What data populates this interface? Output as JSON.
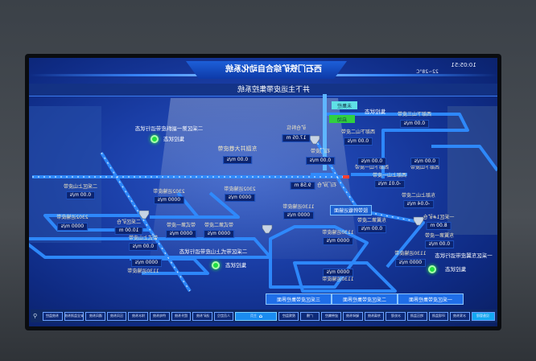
{
  "header": {
    "title": "西石门铁矿综合自动化系统",
    "subtitle": "井下主运皮带集控系统",
    "time": "10:05:51",
    "weather": "22~28°C"
  },
  "control": {
    "label": "集控状态",
    "mode_button": "未集控",
    "start_button": "启动"
  },
  "status_panels": [
    {
      "title": "二采区第一副斜皮带运行状态",
      "state": "集控状态",
      "color": "#20e040"
    },
    {
      "title": "二采区带式上山皮带运行状态",
      "state": "集控状态",
      "color": "#20e040"
    },
    {
      "title": "一采区东翼皮带运行状态",
      "state": "集控状态",
      "color": "#20e040"
    }
  ],
  "transfer_label": "胶带转载运输面",
  "stations": [
    {
      "name": "二采区上山皮带",
      "value": "0.00 m/s"
    },
    {
      "name": "2302运输皮带",
      "value": "0000 m/s"
    },
    {
      "name": "二采区矿仓",
      "value": "10.00 m"
    },
    {
      "name": "带式上山皮带",
      "value": "0.00 m/s"
    },
    {
      "name": "1130运输皮带",
      "value": "0000 m/s"
    },
    {
      "name": "2302运输皮带",
      "value": "0000 m/s"
    },
    {
      "name": "2302运输皮带",
      "value": "0000 m/s"
    },
    {
      "name": "带式第一皮带",
      "value": "0000 m/s"
    },
    {
      "name": "带式第二皮带",
      "value": "0000 m/s"
    },
    {
      "name": "东副井大巷皮带",
      "value": "0.00 m/s"
    },
    {
      "name": "矿仓料位",
      "value": "17.05 m"
    },
    {
      "name": "石门皮带",
      "value": "0.00 m/s"
    },
    {
      "name": "西部下山二皮带",
      "value": "0.00 m/s"
    },
    {
      "name": "西部下山三皮带",
      "value": "0.00 m/s"
    },
    {
      "name": "西部下山一皮带",
      "value": "0.00 m/s"
    },
    {
      "name": "西部下山皮带",
      "value": "0.00 m/s"
    },
    {
      "name": "石门矿仓",
      "value": "9.58 m"
    },
    {
      "name": "西部上山一皮带",
      "value": "-0.01 m/s"
    },
    {
      "name": "东部上山二皮带",
      "value": "-0.04 m/s"
    },
    {
      "name": "一采区1#矿仓",
      "value": "8.00 m"
    },
    {
      "name": "东翼第一皮带",
      "value": "0.00 m/s"
    },
    {
      "name": "东翼第二皮带",
      "value": "0.00 m/s"
    },
    {
      "name": "1130运输皮带",
      "value": "0000 m/s"
    },
    {
      "name": "1130运输皮带",
      "value": "0000 m/s"
    },
    {
      "name": "1130运输皮带",
      "value": "0000 m/s"
    },
    {
      "name": "1130运输皮带",
      "value": "0000 m/s"
    }
  ],
  "area_buttons": [
    "三采区皮带集控界面",
    "二采区皮带集控界面",
    "一采区皮带集控界面"
  ],
  "nav": [
    "系统监控",
    "安全监测系统",
    "通风系统",
    "压风系统",
    "排水系统",
    "供电系统",
    "提升系统",
    "选矿系统",
    "人员定位",
    "主页",
    "视频监控",
    "广播",
    "皮带集控",
    "破碎系统",
    "充填系统",
    "水处理",
    "地压监测",
    "环境监测",
    "水泵系统",
    "设备管理"
  ],
  "colors": {
    "accent": "#1f6ee8",
    "status_ok": "#20e040",
    "panel": "#0c2470"
  }
}
